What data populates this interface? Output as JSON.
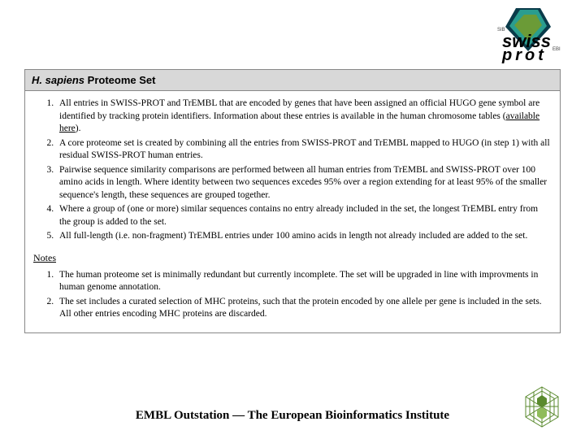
{
  "header": {
    "title_italic": "H. sapiens",
    "title_rest": " Proteome Set"
  },
  "main_list": [
    {
      "pre": "All entries in SWISS-PROT and TrEMBL that are encoded by genes that have been assigned an official HUGO gene symbol are identified by tracking protein identifiers. Information about these entries is available in the human chromosome tables (",
      "link": "available here",
      "post": ")."
    },
    {
      "pre": "A core proteome set is created by combining all the entries from SWISS-PROT and TrEMBL mapped to HUGO (in step 1) with all residual SWISS-PROT human entries.",
      "link": "",
      "post": ""
    },
    {
      "pre": "Pairwise sequence similarity comparisons are performed between all human entries from TrEMBL and SWISS-PROT over 100 amino acids in length. Where identity between two sequences excedes 95% over a region extending for at least 95% of the smaller sequence's length, these sequences are grouped together.",
      "link": "",
      "post": ""
    },
    {
      "pre": "Where a group of (one or more) similar sequences contains no entry already included in the set, the longest TrEMBL entry from the group is added to the set.",
      "link": "",
      "post": ""
    },
    {
      "pre": "All full-length (i.e. non-fragment) TrEMBL entries under 100 amino acids in length not already included are added to the set.",
      "link": "",
      "post": ""
    }
  ],
  "notes_heading": "Notes",
  "notes_list": [
    "The human proteome set is minimally redundant but currently incomplete. The set will be upgraded in line with improvments in human genome annotation.",
    "The set includes a curated selection of MHC proteins, such that the protein encoded by one allele per gene is included in the sets. All other entries encoding MHC proteins are discarded."
  ],
  "footer": "EMBL Outstation — The European Bioinformatics Institute",
  "colors": {
    "logo_dark": "#0a3b4a",
    "logo_teal": "#2a9d8f",
    "logo_green": "#6b9b37",
    "ebi_green": "#5a8a2e",
    "ebi_light": "#8fbc5a"
  }
}
